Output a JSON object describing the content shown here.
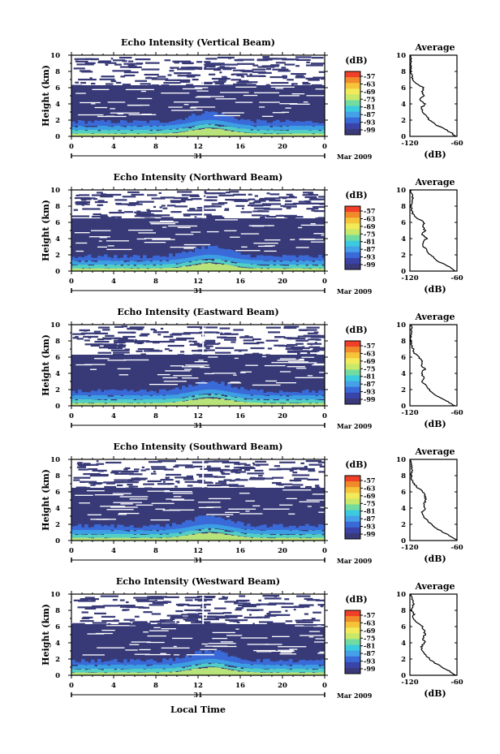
{
  "chart_data": {
    "type": "heatmap",
    "xlabel": "Local Time",
    "date_label": "Mar 2009",
    "day_label": "31",
    "ylabel": "Height (km)",
    "colorbar_title": "(dB)",
    "colorbar_ticks": [
      "-57",
      "-63",
      "-69",
      "-75",
      "-81",
      "-87",
      "-93",
      "-99"
    ],
    "colorbar_colors": [
      "#f0402a",
      "#f08a2a",
      "#f5c43a",
      "#f2ea5a",
      "#c8e86a",
      "#72dca0",
      "#3ccade",
      "#46a0e8",
      "#3a6ad8",
      "#3a44a8",
      "#3a3a7a"
    ],
    "x_ticks": [
      "0",
      "4",
      "8",
      "12",
      "16",
      "20",
      "0"
    ],
    "y_ticks": [
      "0",
      "2",
      "4",
      "6",
      "8",
      "10"
    ],
    "xlim": [
      0,
      24
    ],
    "ylim": [
      0,
      10
    ],
    "profile_title": "Average",
    "profile_xlabel": "(dB)",
    "profile_x_ticks": [
      "-120",
      "-60"
    ],
    "profile_xlim": [
      -120,
      -60
    ],
    "panels": [
      {
        "title": "Echo Intensity (Vertical Beam)",
        "profile": {
          "height": [
            0,
            0.5,
            1,
            1.5,
            2,
            2.5,
            3,
            3.5,
            4,
            4.5,
            5,
            5.5,
            6,
            6.5,
            7,
            7.5,
            8,
            8.5,
            9,
            9.5,
            10
          ],
          "value": [
            -61,
            -68,
            -78,
            -88,
            -95,
            -99,
            -103,
            -106,
            -100,
            -107,
            -103,
            -104,
            -103,
            -111,
            -117,
            -118,
            -119,
            -119,
            -118,
            -119,
            -119
          ]
        }
      },
      {
        "title": "Echo Intensity (Northward Beam)",
        "profile": {
          "height": [
            0,
            0.5,
            1,
            1.5,
            2,
            2.5,
            3,
            3.5,
            4,
            4.5,
            5,
            5.5,
            6,
            6.5,
            7,
            7.5,
            8,
            8.5,
            9,
            9.5,
            10
          ],
          "value": [
            -62,
            -70,
            -80,
            -88,
            -94,
            -98,
            -102,
            -104,
            -99,
            -104,
            -101,
            -103,
            -102,
            -110,
            -116,
            -118,
            -119,
            -118,
            -116,
            -118,
            -119
          ]
        }
      },
      {
        "title": "Echo Intensity (Eastward Beam)",
        "profile": {
          "height": [
            0,
            0.5,
            1,
            1.5,
            2,
            2.5,
            3,
            3.5,
            4,
            4.5,
            5,
            5.5,
            6,
            6.5,
            7,
            7.5,
            8,
            8.5,
            9,
            9.5,
            10
          ],
          "value": [
            -63,
            -72,
            -82,
            -90,
            -95,
            -100,
            -104,
            -102,
            -106,
            -101,
            -105,
            -104,
            -109,
            -114,
            -116,
            -118,
            -119,
            -119,
            -117,
            -118,
            -119
          ]
        }
      },
      {
        "title": "Echo Intensity (Southward Beam)",
        "profile": {
          "height": [
            0,
            0.5,
            1,
            1.5,
            2,
            2.5,
            3,
            3.5,
            4,
            4.5,
            5,
            5.5,
            6,
            6.5,
            7,
            7.5,
            8,
            8.5,
            9,
            9.5,
            10
          ],
          "value": [
            -60,
            -67,
            -77,
            -86,
            -93,
            -98,
            -103,
            -105,
            -100,
            -102,
            -100,
            -101,
            -103,
            -110,
            -115,
            -117,
            -118,
            -118,
            -117,
            -118,
            -119
          ]
        }
      },
      {
        "title": "Echo Intensity (Westward Beam)",
        "profile": {
          "height": [
            0,
            0.5,
            1,
            1.5,
            2,
            2.5,
            3,
            3.5,
            4,
            4.5,
            5,
            5.5,
            6,
            6.5,
            7,
            7.5,
            8,
            8.5,
            9,
            9.5,
            10
          ],
          "value": [
            -62,
            -69,
            -79,
            -88,
            -95,
            -100,
            -104,
            -106,
            -101,
            -103,
            -101,
            -102,
            -104,
            -111,
            -116,
            -115,
            -118,
            -116,
            -115,
            -117,
            -119
          ]
        }
      }
    ]
  }
}
